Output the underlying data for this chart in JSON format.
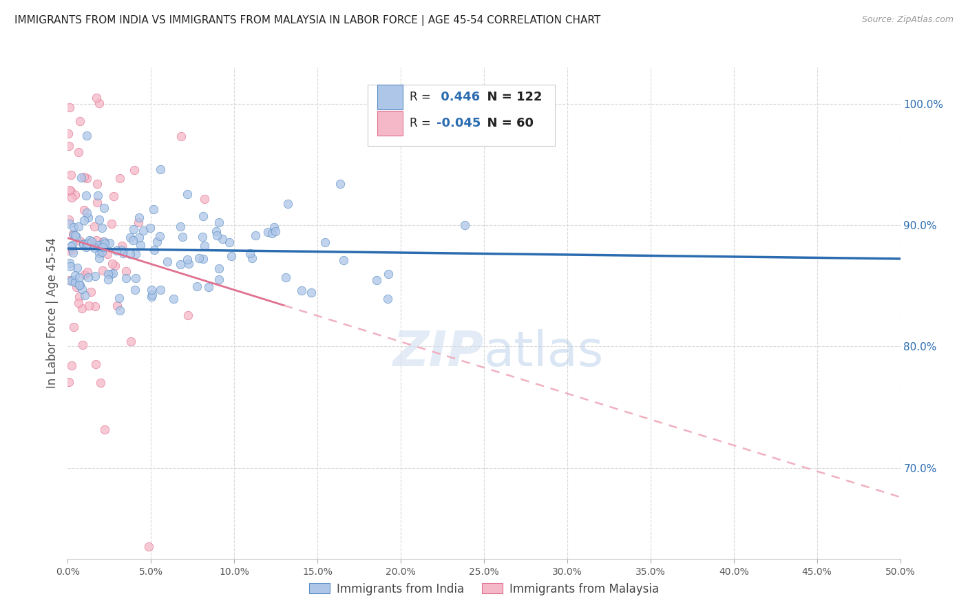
{
  "title": "IMMIGRANTS FROM INDIA VS IMMIGRANTS FROM MALAYSIA IN LABOR FORCE | AGE 45-54 CORRELATION CHART",
  "source": "Source: ZipAtlas.com",
  "ylabel_left": "In Labor Force | Age 45-54",
  "legend_india": "Immigrants from India",
  "legend_malaysia": "Immigrants from Malaysia",
  "R_india": 0.446,
  "N_india": 122,
  "R_malaysia": -0.045,
  "N_malaysia": 60,
  "xlim": [
    0.0,
    0.5
  ],
  "ylim": [
    0.625,
    1.03
  ],
  "xticks": [
    0.0,
    0.05,
    0.1,
    0.15,
    0.2,
    0.25,
    0.3,
    0.35,
    0.4,
    0.45,
    0.5
  ],
  "yticks_right": [
    0.7,
    0.8,
    0.9,
    1.0
  ],
  "color_india": "#aec6e8",
  "color_india_edge": "#5b8ec4",
  "color_india_line": "#2b6cb0",
  "color_malaysia": "#f5b8c8",
  "color_malaysia_edge": "#e07090",
  "color_malaysia_line_solid": "#e07090",
  "color_malaysia_line_dashed": "#f0b0c0",
  "background_color": "#ffffff",
  "grid_color": "#d8d8d8",
  "title_color": "#222222",
  "seed": 42
}
